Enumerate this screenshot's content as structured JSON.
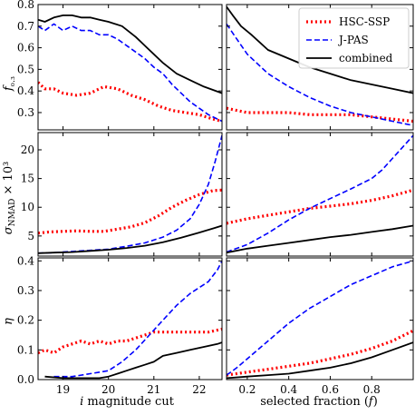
{
  "chart_data": {
    "type": "line",
    "legend": {
      "placement": "top-right",
      "entries": [
        {
          "label": "HSC-SSP",
          "color": "#ff0000",
          "dash": "dotted"
        },
        {
          "label": "J-PAS",
          "color": "#0000ff",
          "dash": "dashed"
        },
        {
          "label": "combined",
          "color": "#000000",
          "dash": "solid"
        }
      ]
    },
    "columns": [
      {
        "xlabel": "i magnitude cut",
        "xlim": [
          18.45,
          22.5
        ],
        "xticks": [
          19,
          20,
          21,
          22
        ],
        "xtick_labels": [
          "19",
          "20",
          "21",
          "22"
        ]
      },
      {
        "xlabel": "selected fraction (f)",
        "xlim": [
          0.1,
          1.0
        ],
        "xticks": [
          0.2,
          0.4,
          0.6,
          0.8
        ],
        "xtick_labels": [
          "0.2",
          "0.4",
          "0.6",
          "0.8"
        ]
      }
    ],
    "rows": [
      {
        "ylabel": "f₀.₃",
        "ylim": [
          0.22,
          0.8
        ],
        "yticks": [
          0.3,
          0.4,
          0.5,
          0.6,
          0.7,
          0.8
        ],
        "ytick_labels": [
          "0.3",
          "0.4",
          "0.5",
          "0.6",
          "0.7",
          "0.8"
        ],
        "panels": [
          {
            "series": [
              {
                "name": "HSC-SSP",
                "x": [
                  18.45,
                  18.6,
                  18.8,
                  19.0,
                  19.3,
                  19.6,
                  19.9,
                  20.2,
                  20.5,
                  20.8,
                  21.1,
                  21.4,
                  21.7,
                  22.0,
                  22.3,
                  22.5
                ],
                "y": [
                  0.44,
                  0.41,
                  0.41,
                  0.39,
                  0.38,
                  0.39,
                  0.42,
                  0.41,
                  0.38,
                  0.36,
                  0.33,
                  0.31,
                  0.3,
                  0.29,
                  0.27,
                  0.26
                ]
              },
              {
                "name": "J-PAS",
                "x": [
                  18.45,
                  18.6,
                  18.8,
                  19.0,
                  19.2,
                  19.4,
                  19.6,
                  19.8,
                  20.0,
                  20.2,
                  20.4,
                  20.6,
                  20.8,
                  21.0,
                  21.2,
                  21.4,
                  21.6,
                  21.8,
                  22.0,
                  22.2,
                  22.4,
                  22.5
                ],
                "y": [
                  0.7,
                  0.68,
                  0.71,
                  0.68,
                  0.7,
                  0.68,
                  0.68,
                  0.66,
                  0.66,
                  0.64,
                  0.61,
                  0.58,
                  0.55,
                  0.51,
                  0.48,
                  0.43,
                  0.39,
                  0.35,
                  0.32,
                  0.29,
                  0.27,
                  0.26
                ]
              },
              {
                "name": "combined",
                "x": [
                  18.45,
                  18.6,
                  18.8,
                  19.0,
                  19.2,
                  19.4,
                  19.6,
                  19.8,
                  20.0,
                  20.3,
                  20.6,
                  20.9,
                  21.2,
                  21.5,
                  21.8,
                  22.1,
                  22.5
                ],
                "y": [
                  0.73,
                  0.72,
                  0.74,
                  0.75,
                  0.75,
                  0.74,
                  0.74,
                  0.73,
                  0.72,
                  0.7,
                  0.65,
                  0.59,
                  0.53,
                  0.48,
                  0.45,
                  0.42,
                  0.39
                ]
              }
            ]
          },
          {
            "series": [
              {
                "name": "HSC-SSP",
                "x": [
                  0.1,
                  0.15,
                  0.2,
                  0.3,
                  0.4,
                  0.5,
                  0.6,
                  0.7,
                  0.8,
                  0.9,
                  1.0
                ],
                "y": [
                  0.32,
                  0.31,
                  0.3,
                  0.3,
                  0.3,
                  0.29,
                  0.29,
                  0.29,
                  0.28,
                  0.27,
                  0.26
                ]
              },
              {
                "name": "J-PAS",
                "x": [
                  0.1,
                  0.15,
                  0.2,
                  0.3,
                  0.4,
                  0.5,
                  0.6,
                  0.7,
                  0.8,
                  0.9,
                  1.0
                ],
                "y": [
                  0.71,
                  0.64,
                  0.57,
                  0.48,
                  0.42,
                  0.37,
                  0.33,
                  0.3,
                  0.28,
                  0.26,
                  0.24
                ]
              },
              {
                "name": "combined",
                "x": [
                  0.1,
                  0.13,
                  0.17,
                  0.22,
                  0.3,
                  0.4,
                  0.5,
                  0.6,
                  0.7,
                  0.8,
                  0.9,
                  1.0
                ],
                "y": [
                  0.79,
                  0.75,
                  0.7,
                  0.66,
                  0.59,
                  0.55,
                  0.51,
                  0.48,
                  0.45,
                  0.43,
                  0.41,
                  0.39
                ]
              }
            ]
          }
        ]
      },
      {
        "ylabel": "σNMAD × 10³",
        "ylim": [
          1.5,
          23
        ],
        "yticks": [
          5,
          10,
          15,
          20
        ],
        "ytick_labels": [
          "5",
          "10",
          "15",
          "20"
        ],
        "panels": [
          {
            "series": [
              {
                "name": "HSC-SSP",
                "x": [
                  18.45,
                  18.7,
                  19.0,
                  19.3,
                  19.6,
                  19.9,
                  20.2,
                  20.5,
                  20.8,
                  21.1,
                  21.4,
                  21.7,
                  22.0,
                  22.3,
                  22.5
                ],
                "y": [
                  5.5,
                  5.7,
                  5.8,
                  5.9,
                  5.8,
                  5.8,
                  6.2,
                  6.6,
                  7.3,
                  8.5,
                  10.0,
                  11.2,
                  12.2,
                  12.9,
                  13.0
                ]
              },
              {
                "name": "J-PAS",
                "x": [
                  18.45,
                  18.8,
                  19.2,
                  19.6,
                  20.0,
                  20.4,
                  20.8,
                  21.2,
                  21.5,
                  21.8,
                  22.0,
                  22.2,
                  22.35,
                  22.5
                ],
                "y": [
                  2.0,
                  2.1,
                  2.3,
                  2.5,
                  2.7,
                  3.2,
                  3.8,
                  4.8,
                  6.0,
                  8.0,
                  10.5,
                  14.0,
                  18.0,
                  22.5
                ]
              },
              {
                "name": "combined",
                "x": [
                  18.45,
                  18.8,
                  19.2,
                  19.6,
                  20.0,
                  20.4,
                  20.8,
                  21.2,
                  21.6,
                  22.0,
                  22.3,
                  22.5
                ],
                "y": [
                  2.0,
                  2.1,
                  2.2,
                  2.4,
                  2.6,
                  2.9,
                  3.3,
                  3.9,
                  4.7,
                  5.6,
                  6.3,
                  6.8
                ]
              }
            ]
          },
          {
            "series": [
              {
                "name": "HSC-SSP",
                "x": [
                  0.1,
                  0.2,
                  0.3,
                  0.4,
                  0.5,
                  0.6,
                  0.7,
                  0.8,
                  0.9,
                  1.0
                ],
                "y": [
                  7.2,
                  8.0,
                  8.6,
                  9.2,
                  9.8,
                  10.2,
                  10.6,
                  11.2,
                  12.0,
                  13.0
                ]
              },
              {
                "name": "J-PAS",
                "x": [
                  0.1,
                  0.2,
                  0.3,
                  0.4,
                  0.5,
                  0.6,
                  0.7,
                  0.8,
                  0.85,
                  0.9,
                  0.95,
                  1.0
                ],
                "y": [
                  2.2,
                  3.5,
                  5.5,
                  7.8,
                  9.8,
                  11.5,
                  13.2,
                  15.0,
                  16.5,
                  18.5,
                  20.5,
                  22.5
                ]
              },
              {
                "name": "combined",
                "x": [
                  0.1,
                  0.2,
                  0.3,
                  0.4,
                  0.5,
                  0.6,
                  0.7,
                  0.8,
                  0.9,
                  1.0
                ],
                "y": [
                  2.1,
                  2.8,
                  3.3,
                  3.8,
                  4.3,
                  4.8,
                  5.2,
                  5.7,
                  6.2,
                  6.8
                ]
              }
            ]
          }
        ]
      },
      {
        "ylabel": "η",
        "ylim": [
          0.0,
          0.41
        ],
        "yticks": [
          0.0,
          0.1,
          0.2,
          0.3,
          0.4
        ],
        "ytick_labels": [
          "0.0",
          "0.1",
          "0.2",
          "0.3",
          "0.4"
        ],
        "panels": [
          {
            "series": [
              {
                "name": "HSC-SSP",
                "x": [
                  18.45,
                  18.6,
                  18.8,
                  19.0,
                  19.2,
                  19.4,
                  19.6,
                  19.8,
                  20.0,
                  20.2,
                  20.4,
                  20.6,
                  20.8,
                  21.0,
                  21.3,
                  21.6,
                  21.9,
                  22.2,
                  22.5
                ],
                "y": [
                  0.09,
                  0.1,
                  0.09,
                  0.11,
                  0.12,
                  0.13,
                  0.12,
                  0.13,
                  0.12,
                  0.13,
                  0.13,
                  0.14,
                  0.15,
                  0.16,
                  0.16,
                  0.16,
                  0.16,
                  0.16,
                  0.17
                ]
              },
              {
                "name": "J-PAS",
                "x": [
                  18.8,
                  19.2,
                  19.6,
                  20.0,
                  20.3,
                  20.6,
                  20.9,
                  21.2,
                  21.5,
                  21.8,
                  22.0,
                  22.2,
                  22.4,
                  22.5
                ],
                "y": [
                  0.01,
                  0.01,
                  0.02,
                  0.03,
                  0.06,
                  0.1,
                  0.15,
                  0.2,
                  0.25,
                  0.29,
                  0.31,
                  0.33,
                  0.37,
                  0.4
                ]
              },
              {
                "name": "combined",
                "x": [
                  18.6,
                  19.0,
                  19.4,
                  19.8,
                  20.0,
                  20.2,
                  20.4,
                  20.6,
                  20.8,
                  21.0,
                  21.2,
                  21.5,
                  21.8,
                  22.1,
                  22.4,
                  22.5
                ],
                "y": [
                  0.01,
                  0.005,
                  0.005,
                  0.005,
                  0.01,
                  0.02,
                  0.03,
                  0.04,
                  0.05,
                  0.06,
                  0.08,
                  0.09,
                  0.1,
                  0.11,
                  0.12,
                  0.125
                ]
              }
            ]
          },
          {
            "series": [
              {
                "name": "HSC-SSP",
                "x": [
                  0.1,
                  0.2,
                  0.3,
                  0.4,
                  0.5,
                  0.6,
                  0.7,
                  0.8,
                  0.9,
                  1.0
                ],
                "y": [
                  0.015,
                  0.025,
                  0.035,
                  0.045,
                  0.055,
                  0.07,
                  0.085,
                  0.105,
                  0.13,
                  0.165
                ]
              },
              {
                "name": "J-PAS",
                "x": [
                  0.1,
                  0.15,
                  0.2,
                  0.3,
                  0.4,
                  0.5,
                  0.6,
                  0.7,
                  0.8,
                  0.9,
                  1.0
                ],
                "y": [
                  0.015,
                  0.04,
                  0.07,
                  0.13,
                  0.19,
                  0.24,
                  0.28,
                  0.32,
                  0.35,
                  0.38,
                  0.4
                ]
              },
              {
                "name": "combined",
                "x": [
                  0.1,
                  0.2,
                  0.3,
                  0.4,
                  0.5,
                  0.6,
                  0.7,
                  0.8,
                  0.9,
                  1.0
                ],
                "y": [
                  0.005,
                  0.01,
                  0.015,
                  0.02,
                  0.03,
                  0.04,
                  0.055,
                  0.075,
                  0.1,
                  0.125
                ]
              }
            ]
          }
        ]
      }
    ]
  }
}
